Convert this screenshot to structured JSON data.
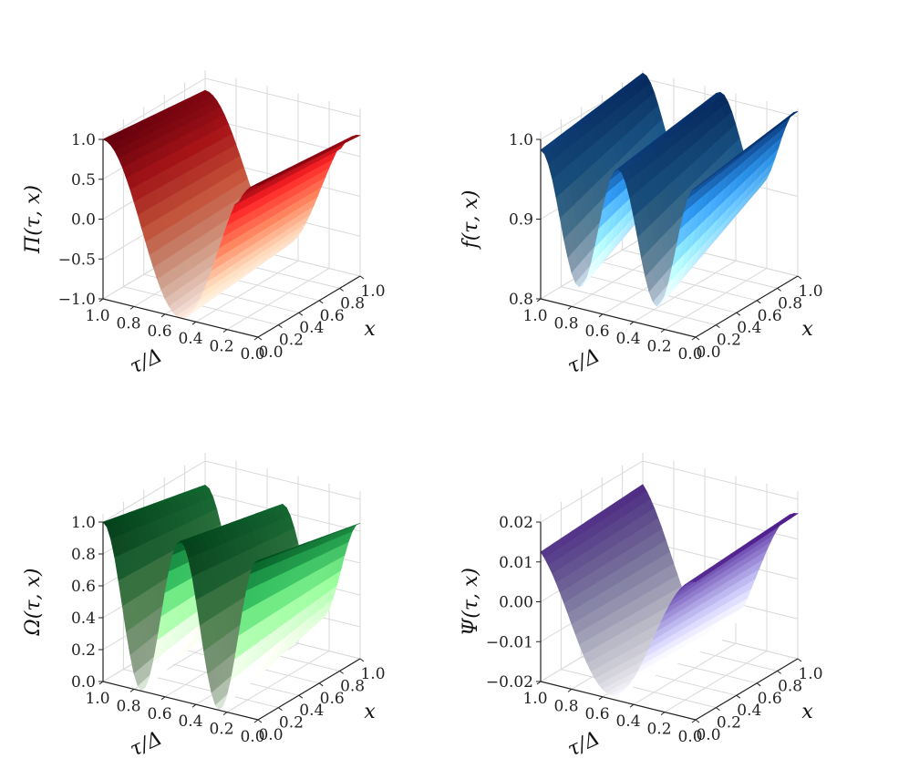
{
  "chart_data": [
    {
      "type": "surface",
      "colormap": "Reds",
      "shape": "pi",
      "zlabel": "Π(τ, x)",
      "xlabel": "τ/Δ",
      "ylabel": "x",
      "tau_ticks": [
        "1.0",
        "0.8",
        "0.6",
        "0.4",
        "0.2",
        "0.0"
      ],
      "x_ticks": [
        "0.0",
        "0.2",
        "0.4",
        "0.6",
        "0.8",
        "1.0"
      ],
      "z_ticks": [
        "1.0",
        "0.5",
        "0.0",
        "−0.5",
        "−1.0"
      ],
      "zlim": [
        -1.0,
        1.0
      ]
    },
    {
      "type": "surface",
      "colormap": "Blues",
      "shape": "f",
      "zlabel": "f(τ, x)",
      "xlabel": "τ/Δ",
      "ylabel": "x",
      "tau_ticks": [
        "1.0",
        "0.8",
        "0.6",
        "0.4",
        "0.2",
        "0.0"
      ],
      "x_ticks": [
        "0.0",
        "0.2",
        "0.4",
        "0.6",
        "0.8",
        "1.0"
      ],
      "z_ticks": [
        "1.0",
        "0.9",
        "0.8"
      ],
      "zlim": [
        0.72,
        1.02
      ]
    },
    {
      "type": "surface",
      "colormap": "Greens",
      "shape": "omega",
      "zlabel": "Ω(τ, x)",
      "xlabel": "τ/Δ",
      "ylabel": "x",
      "tau_ticks": [
        "1.0",
        "0.8",
        "0.6",
        "0.4",
        "0.2",
        "0.0"
      ],
      "x_ticks": [
        "0.0",
        "0.2",
        "0.4",
        "0.6",
        "0.8",
        "1.0"
      ],
      "z_ticks": [
        "1.0",
        "0.8",
        "0.6",
        "0.4",
        "0.2",
        "0.0"
      ],
      "zlim": [
        0.0,
        1.0
      ]
    },
    {
      "type": "surface",
      "colormap": "Purples",
      "shape": "psi",
      "zlabel": "Ψ(τ, x)",
      "xlabel": "τ/Δ",
      "ylabel": "x",
      "tau_ticks": [
        "1.0",
        "0.8",
        "0.6",
        "0.4",
        "0.2",
        "0.0"
      ],
      "x_ticks": [
        "0.0",
        "0.2",
        "0.4",
        "0.6",
        "0.8",
        "1.0"
      ],
      "z_ticks": [
        "0.02",
        "0.01",
        "0.00",
        "−0.01",
        "−0.02"
      ],
      "zlim": [
        -0.02,
        0.025
      ]
    }
  ]
}
